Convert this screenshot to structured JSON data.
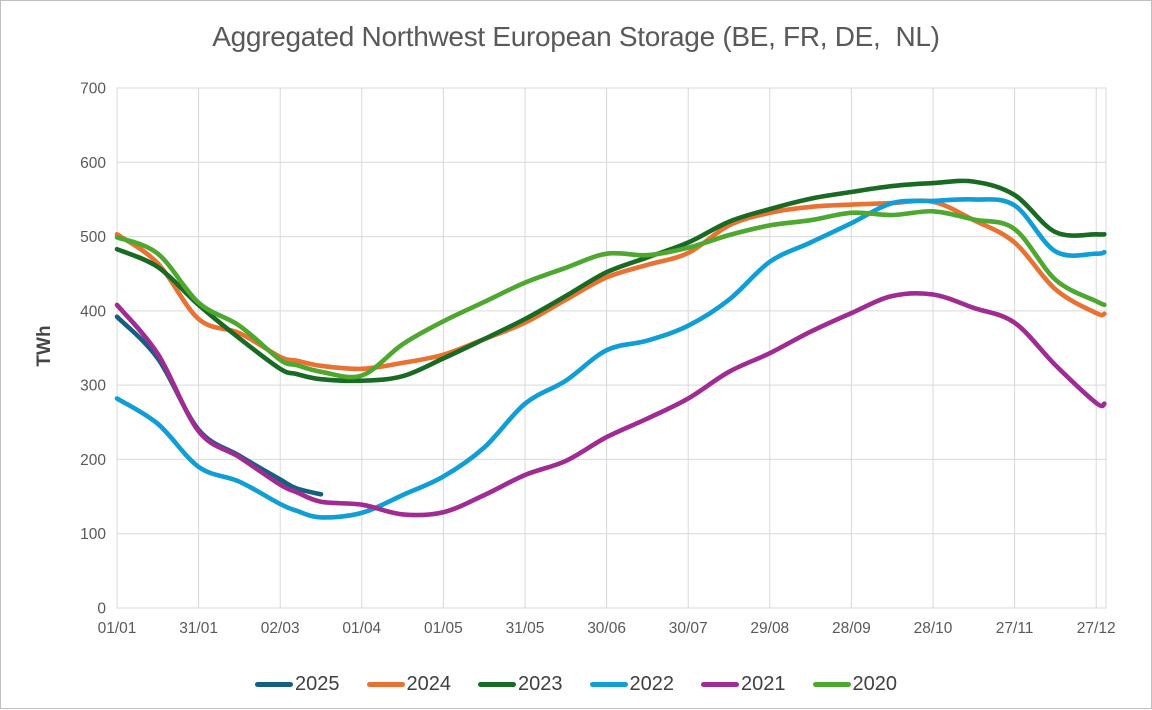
{
  "chart_data": {
    "type": "line",
    "title": "Aggregated Northwest European Storage (BE, FR, DE,  NL)",
    "xlabel": "",
    "ylabel": "TWh",
    "ylim": [
      0,
      700
    ],
    "y_ticks": [
      0,
      100,
      200,
      300,
      400,
      500,
      600,
      700
    ],
    "x_tick_days": [
      0,
      30,
      60,
      90,
      120,
      150,
      180,
      210,
      240,
      270,
      300,
      330,
      360
    ],
    "x_tick_labels": [
      "01/01",
      "31/01",
      "02/03",
      "01/04",
      "01/05",
      "31/05",
      "30/06",
      "30/07",
      "29/08",
      "28/09",
      "28/10",
      "27/11",
      "27/12"
    ],
    "grid": true,
    "grid_color": "#d9d9d9",
    "axis_text_color": "#595959",
    "title_color": "#595959",
    "legend_position": "bottom",
    "sample_days": [
      0,
      15,
      30,
      45,
      60,
      66,
      75,
      90,
      105,
      120,
      135,
      150,
      165,
      180,
      195,
      210,
      225,
      240,
      255,
      270,
      285,
      300,
      315,
      330,
      345,
      360,
      363
    ],
    "series": [
      {
        "name": "2025",
        "color": "#156082",
        "values": [
          392,
          336,
          240,
          205,
          173,
          161,
          153,
          null,
          null,
          null,
          null,
          null,
          null,
          null,
          null,
          null,
          null,
          null,
          null,
          null,
          null,
          null,
          null,
          null,
          null,
          null,
          null
        ]
      },
      {
        "name": "2024",
        "color": "#E97132",
        "values": [
          503,
          464,
          389,
          370,
          338,
          333,
          326,
          322,
          330,
          341,
          362,
          384,
          415,
          445,
          462,
          478,
          515,
          532,
          540,
          543,
          545,
          547,
          522,
          492,
          429,
          397,
          396
        ]
      },
      {
        "name": "2023",
        "color": "#196B24",
        "values": [
          483,
          459,
          408,
          363,
          322,
          315,
          308,
          306,
          312,
          336,
          362,
          389,
          420,
          452,
          472,
          492,
          520,
          537,
          551,
          560,
          568,
          572,
          574,
          556,
          506,
          503,
          503
        ]
      },
      {
        "name": "2022",
        "color": "#0F9ED5",
        "values": [
          282,
          248,
          190,
          170,
          140,
          131,
          122,
          128,
          152,
          177,
          216,
          275,
          306,
          347,
          360,
          380,
          415,
          466,
          492,
          518,
          545,
          548,
          550,
          542,
          480,
          477,
          479
        ]
      },
      {
        "name": "2021",
        "color": "#A02B93",
        "values": [
          408,
          342,
          238,
          203,
          166,
          156,
          143,
          139,
          126,
          129,
          152,
          179,
          198,
          230,
          255,
          282,
          318,
          343,
          372,
          397,
          420,
          422,
          404,
          384,
          327,
          276,
          275
        ]
      },
      {
        "name": "2020",
        "color": "#4EA72E",
        "values": [
          499,
          477,
          411,
          380,
          334,
          327,
          318,
          313,
          355,
          386,
          412,
          438,
          458,
          477,
          475,
          485,
          502,
          515,
          522,
          532,
          529,
          534,
          523,
          510,
          442,
          413,
          408
        ]
      }
    ]
  }
}
